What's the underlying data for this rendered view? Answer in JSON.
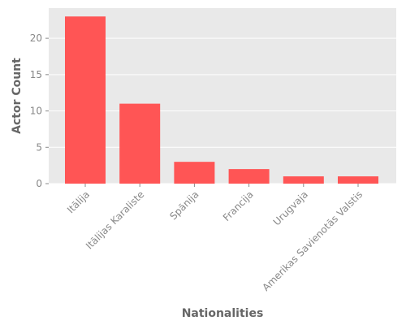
{
  "chart_data": {
    "type": "bar",
    "title": "",
    "xlabel": "Nationalities",
    "ylabel": "Actor Count",
    "categories": [
      "Itālija",
      "Itālijas Karaliste",
      "Spānija",
      "Francija",
      "Urugvaja",
      "Amerikas Savienotās Valstis"
    ],
    "values": [
      23,
      11,
      3,
      2,
      1,
      1
    ],
    "ylim": [
      0,
      24.15
    ],
    "yticks": [
      0,
      5,
      10,
      15,
      20
    ],
    "grid": true,
    "legend": "none",
    "colors": {
      "bar": "#ff5555",
      "plot_background": "#e9e9e9",
      "grid": "#ffffff",
      "tick_text": "#888888",
      "axis_text": "#666666"
    }
  }
}
